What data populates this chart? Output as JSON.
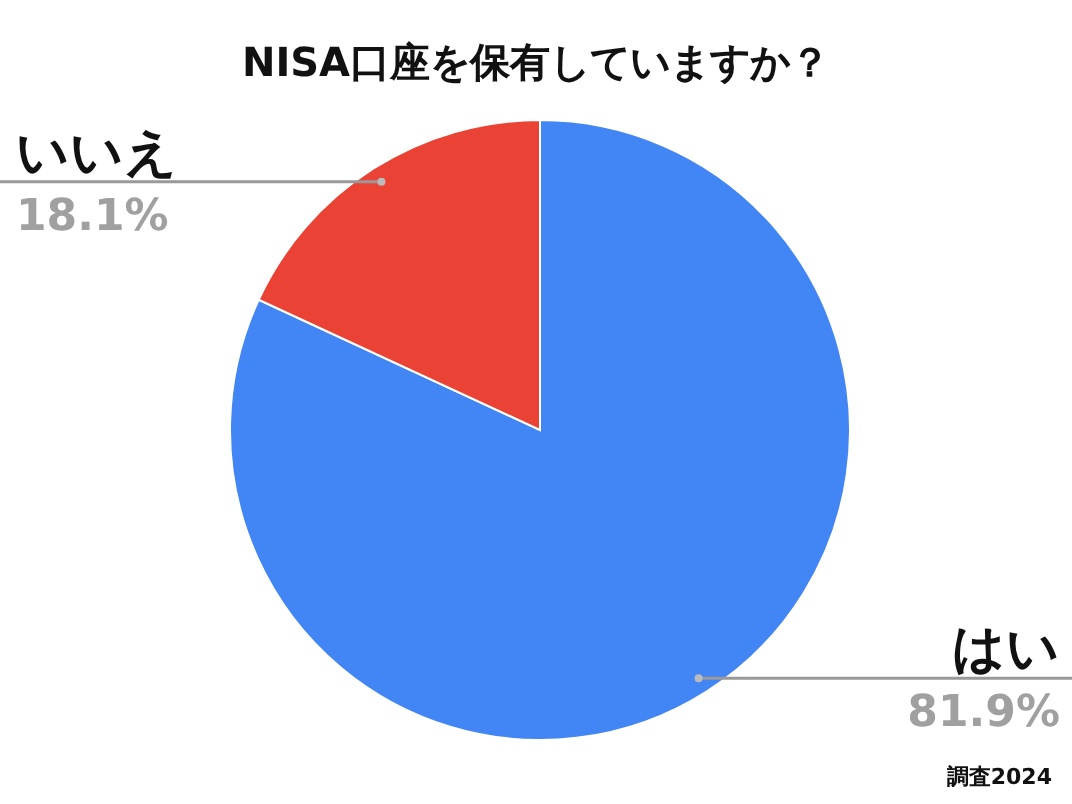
{
  "chart_data": {
    "type": "pie",
    "title": "NISA口座を保有していますか？",
    "categories": [
      "はい",
      "いいえ"
    ],
    "values": [
      81.9,
      18.1
    ],
    "value_labels": [
      "81.9%",
      "18.1%"
    ],
    "colors": [
      "#4285f4",
      "#ea4335"
    ],
    "annotations": [
      "調査2024"
    ]
  }
}
